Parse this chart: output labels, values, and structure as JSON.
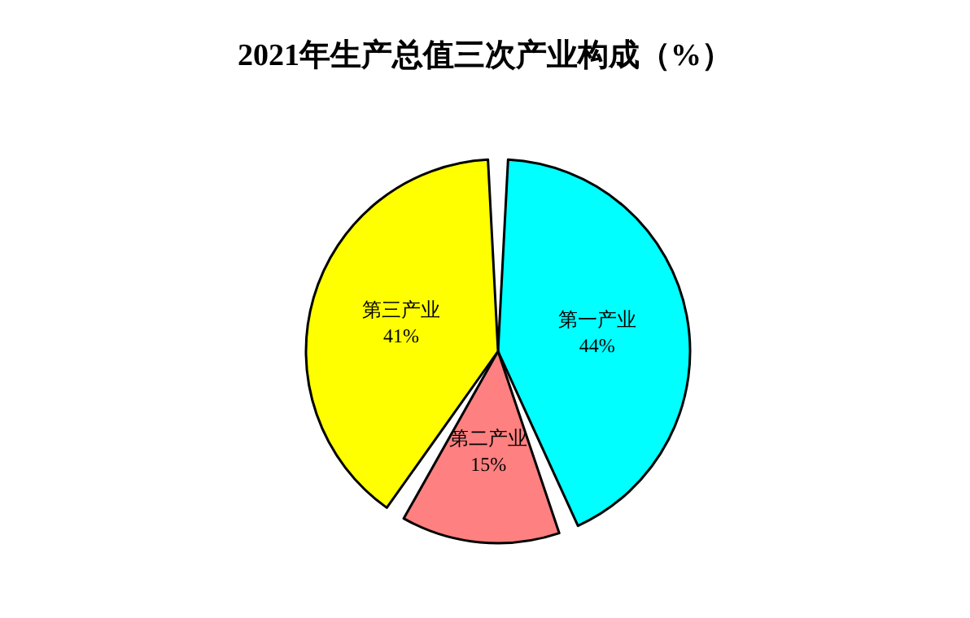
{
  "chart_data": {
    "type": "pie",
    "title": "2021年生产总值三次产业构成（%）",
    "categories": [
      "第一产业",
      "第二产业",
      "第三产业"
    ],
    "values": [
      44,
      15,
      41
    ],
    "value_labels": [
      "44%",
      "15%",
      "41%"
    ],
    "colors": [
      "#00ffff",
      "#ff8080",
      "#ffff00"
    ],
    "legend": false
  }
}
